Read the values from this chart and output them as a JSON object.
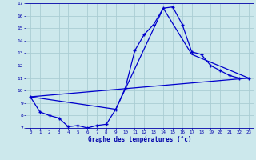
{
  "xlabel": "Graphe des températures (°c)",
  "bg_color": "#cce8ec",
  "grid_color": "#aacdd4",
  "line_color": "#0000cc",
  "xlim": [
    -0.5,
    23.5
  ],
  "ylim": [
    7,
    17
  ],
  "yticks": [
    7,
    8,
    9,
    10,
    11,
    12,
    13,
    14,
    15,
    16,
    17
  ],
  "xticks": [
    0,
    1,
    2,
    3,
    4,
    5,
    6,
    7,
    8,
    9,
    10,
    11,
    12,
    13,
    14,
    15,
    16,
    17,
    18,
    19,
    20,
    21,
    22,
    23
  ],
  "series_main": [
    [
      0,
      9.5
    ],
    [
      1,
      8.3
    ],
    [
      2,
      8.0
    ],
    [
      3,
      7.8
    ],
    [
      4,
      7.1
    ],
    [
      5,
      7.2
    ],
    [
      6,
      7.0
    ],
    [
      7,
      7.2
    ],
    [
      8,
      7.3
    ],
    [
      9,
      8.5
    ],
    [
      10,
      10.2
    ],
    [
      11,
      13.2
    ],
    [
      12,
      14.5
    ],
    [
      13,
      15.3
    ],
    [
      14,
      16.6
    ],
    [
      15,
      16.7
    ],
    [
      16,
      15.3
    ],
    [
      17,
      13.1
    ],
    [
      18,
      12.9
    ],
    [
      19,
      12.0
    ],
    [
      20,
      11.6
    ],
    [
      21,
      11.2
    ],
    [
      22,
      11.0
    ],
    [
      23,
      11.0
    ]
  ],
  "series_line2": [
    [
      0,
      9.5
    ],
    [
      23,
      11.0
    ]
  ],
  "series_line3": [
    [
      0,
      9.5
    ],
    [
      9,
      8.5
    ],
    [
      14,
      16.6
    ],
    [
      17,
      12.9
    ],
    [
      23,
      11.0
    ]
  ]
}
